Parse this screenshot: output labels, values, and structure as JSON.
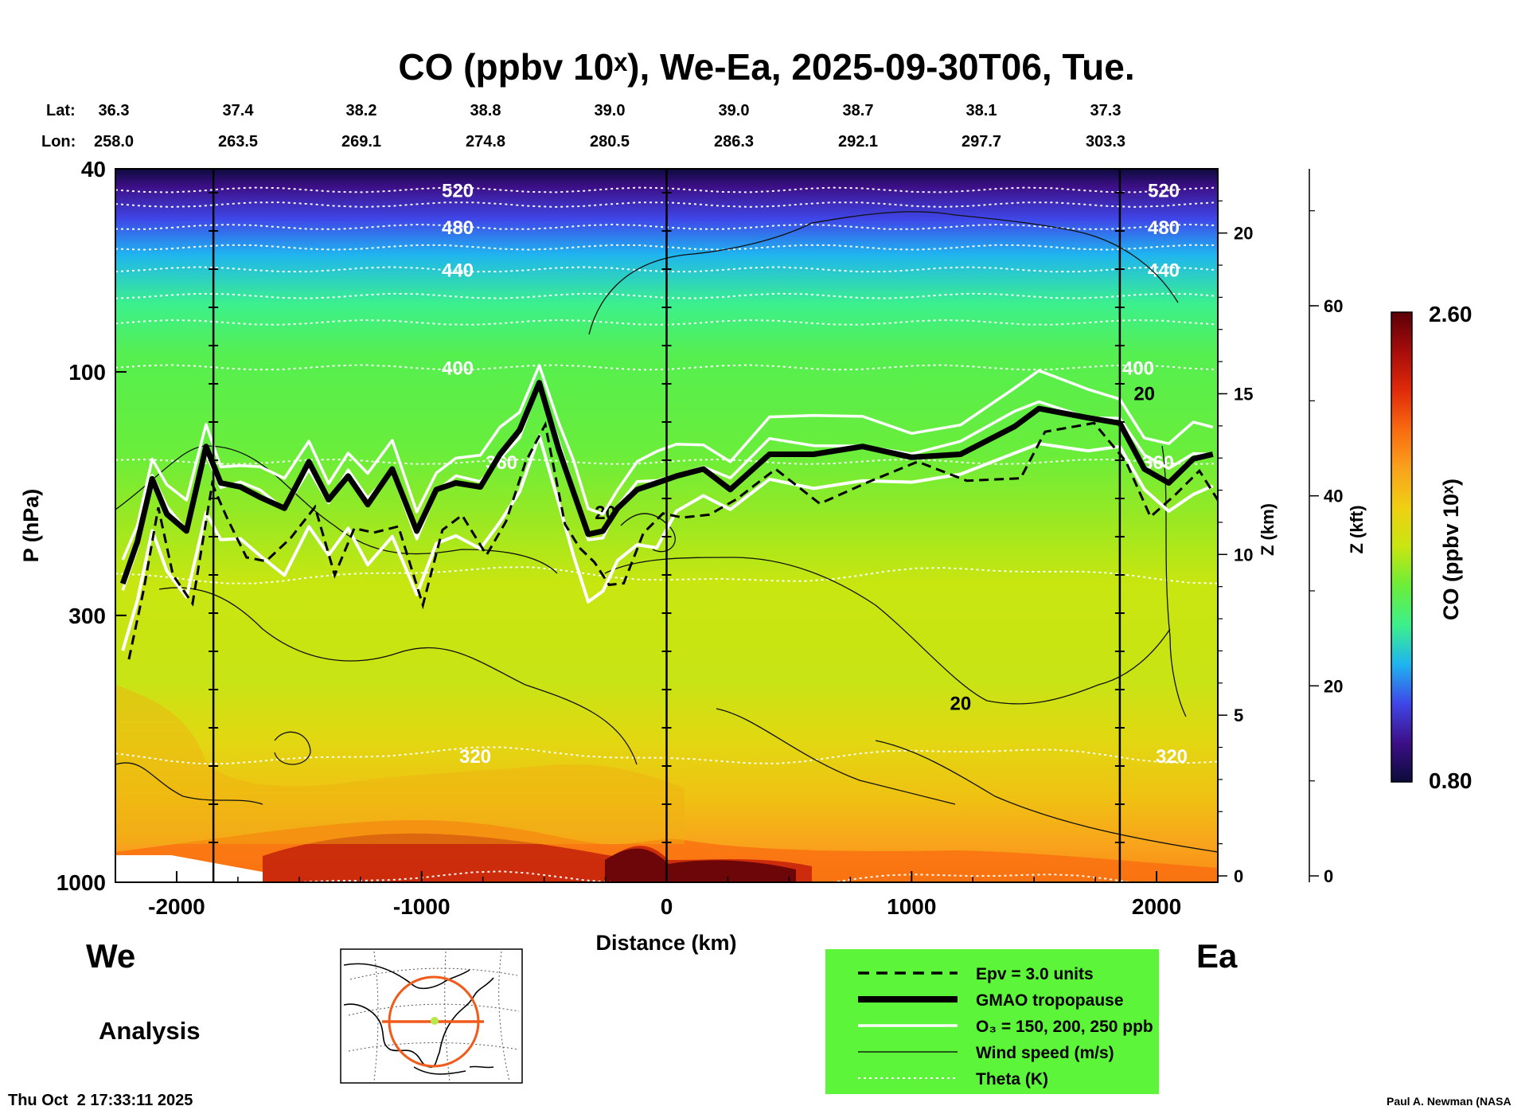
{
  "chart_data": {
    "type": "heatmap",
    "title": "CO (ppbv 10ˣ), We-Ea, 2025-09-30T06, Tue.",
    "xlabel": "Distance (km)",
    "ylabel": "P (hPa)",
    "y2label": "Z (km)",
    "y3label": "Z (kft)",
    "colorbar_label": "CO (ppbv 10ˣ)",
    "xlim": [
      -2250,
      2250
    ],
    "ylim_hpa": [
      1000,
      40
    ],
    "y_scale": "log",
    "x_ticks": [
      -2000,
      -1000,
      0,
      1000,
      2000
    ],
    "y_ticks": [
      1000,
      300,
      100,
      40
    ],
    "z_km_ticks": [
      0,
      5,
      10,
      15,
      20
    ],
    "z_kft_ticks": [
      0,
      20,
      40,
      60
    ],
    "colorbar_range": [
      0.8,
      2.6
    ],
    "colorbar_tick_labels": [
      "2.60",
      "0.80"
    ],
    "lat_label": "Lat:",
    "lon_label": "Lon:",
    "lat_ticks": [
      "36.3",
      "37.4",
      "38.2",
      "38.8",
      "39.0",
      "39.0",
      "38.7",
      "38.1",
      "37.3"
    ],
    "lon_ticks": [
      "258.0",
      "263.5",
      "269.1",
      "274.8",
      "280.5",
      "286.3",
      "292.1",
      "297.7",
      "303.3"
    ],
    "theta_levels": [
      {
        "value": 520,
        "label": "520",
        "p_hpa": 44
      },
      {
        "value": 480,
        "label": "480",
        "p_hpa": 52
      },
      {
        "value": 440,
        "label": "440",
        "p_hpa": 63
      },
      {
        "value": 400,
        "label": "400",
        "p_hpa": 98
      },
      {
        "value": 360,
        "label": "360",
        "p_hpa": 150
      },
      {
        "value": 320,
        "label": "320",
        "p_hpa": 565
      }
    ],
    "theta_extra_hpa": [
      47,
      57,
      71,
      80,
      250,
      990
    ],
    "wind_labels": [
      {
        "text": "20",
        "x_km": 1200,
        "p_hpa": 445
      },
      {
        "text": "20",
        "x_km": 1950,
        "p_hpa": 110
      },
      {
        "text": "20",
        "x_km": -250,
        "p_hpa": 188
      }
    ],
    "tropopause_hpa": [
      {
        "x": -2220,
        "p": 260
      },
      {
        "x": -2160,
        "p": 215
      },
      {
        "x": -2100,
        "p": 162
      },
      {
        "x": -2040,
        "p": 190
      },
      {
        "x": -1960,
        "p": 205
      },
      {
        "x": -1880,
        "p": 140
      },
      {
        "x": -1820,
        "p": 165
      },
      {
        "x": -1740,
        "p": 168
      },
      {
        "x": -1660,
        "p": 176
      },
      {
        "x": -1560,
        "p": 185
      },
      {
        "x": -1460,
        "p": 150
      },
      {
        "x": -1380,
        "p": 178
      },
      {
        "x": -1300,
        "p": 160
      },
      {
        "x": -1220,
        "p": 182
      },
      {
        "x": -1120,
        "p": 155
      },
      {
        "x": -1020,
        "p": 205
      },
      {
        "x": -940,
        "p": 170
      },
      {
        "x": -860,
        "p": 165
      },
      {
        "x": -760,
        "p": 168
      },
      {
        "x": -680,
        "p": 145
      },
      {
        "x": -600,
        "p": 130
      },
      {
        "x": -520,
        "p": 105
      },
      {
        "x": -440,
        "p": 142
      },
      {
        "x": -380,
        "p": 172
      },
      {
        "x": -320,
        "p": 208
      },
      {
        "x": -260,
        "p": 205
      },
      {
        "x": -200,
        "p": 185
      },
      {
        "x": -120,
        "p": 170
      },
      {
        "x": -40,
        "p": 165
      },
      {
        "x": 40,
        "p": 160
      },
      {
        "x": 150,
        "p": 155
      },
      {
        "x": 260,
        "p": 170
      },
      {
        "x": 420,
        "p": 145
      },
      {
        "x": 600,
        "p": 145
      },
      {
        "x": 800,
        "p": 140
      },
      {
        "x": 1000,
        "p": 147
      },
      {
        "x": 1200,
        "p": 145
      },
      {
        "x": 1420,
        "p": 128
      },
      {
        "x": 1520,
        "p": 118
      },
      {
        "x": 1720,
        "p": 123
      },
      {
        "x": 1850,
        "p": 126
      },
      {
        "x": 1950,
        "p": 155
      },
      {
        "x": 2050,
        "p": 165
      },
      {
        "x": 2150,
        "p": 148
      },
      {
        "x": 2230,
        "p": 145
      }
    ]
  },
  "info": {
    "direction_left": "We",
    "direction_right": "Ea",
    "analysis_label": "Analysis",
    "timestamp": "Thu Oct  2 17:33:11 2025",
    "credit": "Paul A. Newman (NASA"
  },
  "legend": {
    "items": [
      {
        "label": "Epv = 3.0 units",
        "style": "dashed"
      },
      {
        "label": "GMAO tropopause",
        "style": "thick"
      },
      {
        "label": "O₃ = 150, 200, 250 ppb",
        "style": "white"
      },
      {
        "label": "Wind speed (m/s)",
        "style": "thin"
      },
      {
        "label": "Theta (K)",
        "style": "dotted"
      }
    ],
    "colors": {
      "background": "#5cf53a",
      "tropopause": "#000000",
      "ozone": "#ffffff"
    }
  },
  "colormap": [
    "#0c0b3c",
    "#3d0f87",
    "#3f46e8",
    "#1fb4f0",
    "#3cf08c",
    "#6aee3a",
    "#c8e610",
    "#efd012",
    "#f9a21c",
    "#f96b10",
    "#e02a0a",
    "#a70c0a",
    "#5a0008"
  ]
}
